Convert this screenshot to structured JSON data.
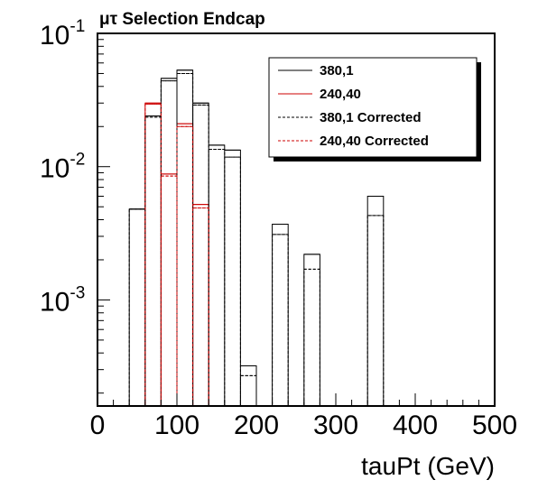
{
  "chart_data": {
    "type": "step",
    "title": "μτ Selection Endcap",
    "xlabel": "tauPt (GeV)",
    "ylabel": "",
    "xlim": [
      0,
      500
    ],
    "ylim": [
      0.00016,
      0.1
    ],
    "ylog": true,
    "bin_width": 20,
    "x_ticks": [
      0,
      100,
      200,
      300,
      400,
      500
    ],
    "y_ticks": [
      {
        "base": "10",
        "exp": "-3",
        "value": 0.001
      },
      {
        "base": "10",
        "exp": "-2",
        "value": 0.01
      },
      {
        "base": "10",
        "exp": "-1",
        "value": 0.1
      }
    ],
    "legend_position": "top-right",
    "series": [
      {
        "name": "380,1",
        "color": "#000000",
        "style": "solid",
        "bins": [
          [
            40,
            0.0048
          ],
          [
            60,
            0.024
          ],
          [
            80,
            0.046
          ],
          [
            100,
            0.053
          ],
          [
            120,
            0.03
          ],
          [
            140,
            0.0145
          ],
          [
            160,
            0.0133
          ],
          [
            180,
            0.00032
          ],
          [
            220,
            0.0037
          ],
          [
            260,
            0.0022
          ],
          [
            340,
            0.006
          ]
        ]
      },
      {
        "name": "240,40",
        "color": "#cc0000",
        "style": "solid",
        "bins": [
          [
            60,
            0.03
          ],
          [
            80,
            0.0088
          ],
          [
            100,
            0.021
          ],
          [
            120,
            0.0052
          ]
        ]
      },
      {
        "name": "380,1 Corrected",
        "color": "#000000",
        "style": "dashed",
        "bins": [
          [
            40,
            0.0048
          ],
          [
            60,
            0.0235
          ],
          [
            80,
            0.044
          ],
          [
            100,
            0.05
          ],
          [
            120,
            0.029
          ],
          [
            140,
            0.0135
          ],
          [
            160,
            0.0118
          ],
          [
            180,
            0.00027
          ],
          [
            220,
            0.0031
          ],
          [
            260,
            0.0017
          ],
          [
            340,
            0.0043
          ]
        ]
      },
      {
        "name": "240,40 Corrected",
        "color": "#cc0000",
        "style": "dashed",
        "bins": [
          [
            60,
            0.0295
          ],
          [
            80,
            0.0085
          ],
          [
            100,
            0.02
          ],
          [
            120,
            0.0049
          ]
        ]
      }
    ]
  }
}
